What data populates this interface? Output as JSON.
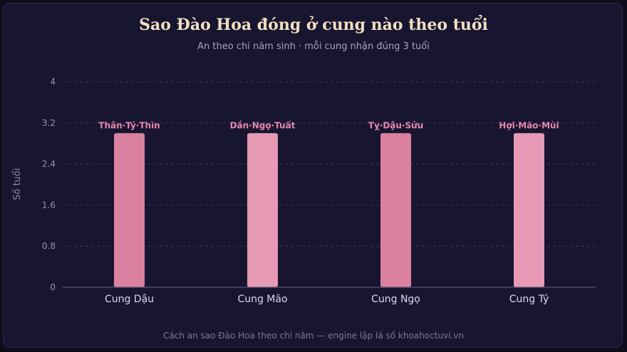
{
  "header": {
    "title": "Sao Đào Hoa đóng ở cung nào theo tuổi",
    "subtitle": "An theo chi năm sinh · mỗi cung nhận đúng 3 tuổi"
  },
  "footer": {
    "caption": "Cách an sao Đào Hoa theo chi năm — engine lập lá số khoahoctuvi.vn"
  },
  "chart_data": {
    "type": "bar",
    "title": "Sao Đào Hoa đóng ở cung nào theo tuổi",
    "subtitle": "An theo chi năm sinh · mỗi cung nhận đúng 3 tuổi",
    "xlabel": "",
    "ylabel": "Số tuổi",
    "ylim": [
      0,
      4
    ],
    "yticks": [
      0,
      0.8,
      1.6,
      2.4,
      3.2,
      4
    ],
    "grid": true,
    "categories": [
      "Cung Dậu",
      "Cung Mão",
      "Cung Ngọ",
      "Cung Tý"
    ],
    "values": [
      3,
      3,
      3,
      3
    ],
    "data_labels": [
      "Thân·Tý·Thìn",
      "Dần·Ngọ·Tuất",
      "Tỵ·Dậu·Sửu",
      "Hợi·Mão·Mùi"
    ],
    "colors": [
      "#d9819f",
      "#e69ab5",
      "#d9819f",
      "#e69ab5"
    ],
    "label_color": "#e888ae"
  }
}
